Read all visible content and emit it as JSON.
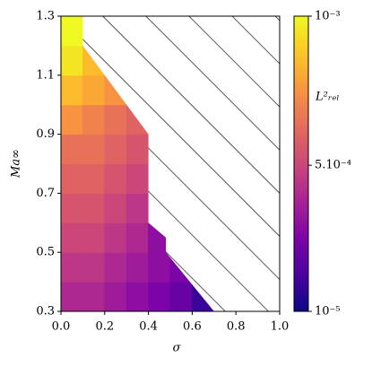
{
  "chart_data": {
    "type": "contour",
    "x_label": "σ",
    "y_label": "Ma∞",
    "colorbar_label": "L²ᵣₑₗ",
    "colormap": "plasma",
    "hatch_missing": true,
    "x": [
      0.05,
      0.15,
      0.25,
      0.35,
      0.45,
      0.55,
      0.65
    ],
    "y": [
      0.35,
      0.45,
      0.55,
      0.65,
      0.75,
      0.85,
      0.95,
      1.05,
      1.15,
      1.25
    ],
    "z": [
      [
        0.0004,
        0.0004,
        0.00035,
        0.0003,
        0.00025,
        0.0002,
        0.0001
      ],
      [
        0.00045,
        0.00045,
        0.0004,
        0.00035,
        0.0003,
        0.00025,
        null
      ],
      [
        0.0005,
        0.0005,
        0.00045,
        0.0004,
        0.0003,
        null,
        null
      ],
      [
        0.00055,
        0.00055,
        0.0005,
        0.00045,
        null,
        null,
        null
      ],
      [
        0.0006,
        0.0006,
        0.00055,
        0.0005,
        null,
        null,
        null
      ],
      [
        0.00065,
        0.00065,
        0.0006,
        0.00055,
        null,
        null,
        null
      ],
      [
        0.00075,
        0.0007,
        0.00065,
        0.0006,
        null,
        null,
        null
      ],
      [
        0.00085,
        0.0008,
        0.00075,
        null,
        null,
        null,
        null
      ],
      [
        0.00095,
        0.00085,
        null,
        null,
        null,
        null,
        null
      ],
      [
        0.001,
        null,
        null,
        null,
        null,
        null,
        null
      ]
    ],
    "boundary": {
      "x": [
        0,
        0,
        0.1,
        0.1,
        0.4,
        0.4,
        0.48,
        0.48,
        0.7
      ],
      "y": [
        0.3,
        1.3,
        1.3,
        1.2,
        0.9,
        0.6,
        0.55,
        0.5,
        0.3
      ]
    },
    "xlim": [
      0,
      1
    ],
    "xticks": [
      {
        "value": 0,
        "label": "0.0"
      },
      0.2,
      0.4,
      0.6,
      0.8,
      {
        "value": 1,
        "label": "1.0"
      }
    ],
    "ylim": [
      0.3,
      1.3
    ],
    "yticks": [
      0.3,
      0.5,
      0.7,
      0.9,
      1.1,
      1.3
    ],
    "clim": [
      1e-05,
      0.001
    ],
    "cticks": [
      {
        "value": 0.001,
        "label": "10⁻³"
      },
      {
        "value": 0.0005,
        "label": "5.10⁻⁴"
      },
      {
        "value": 1e-05,
        "label": "10⁻⁵"
      }
    ]
  }
}
